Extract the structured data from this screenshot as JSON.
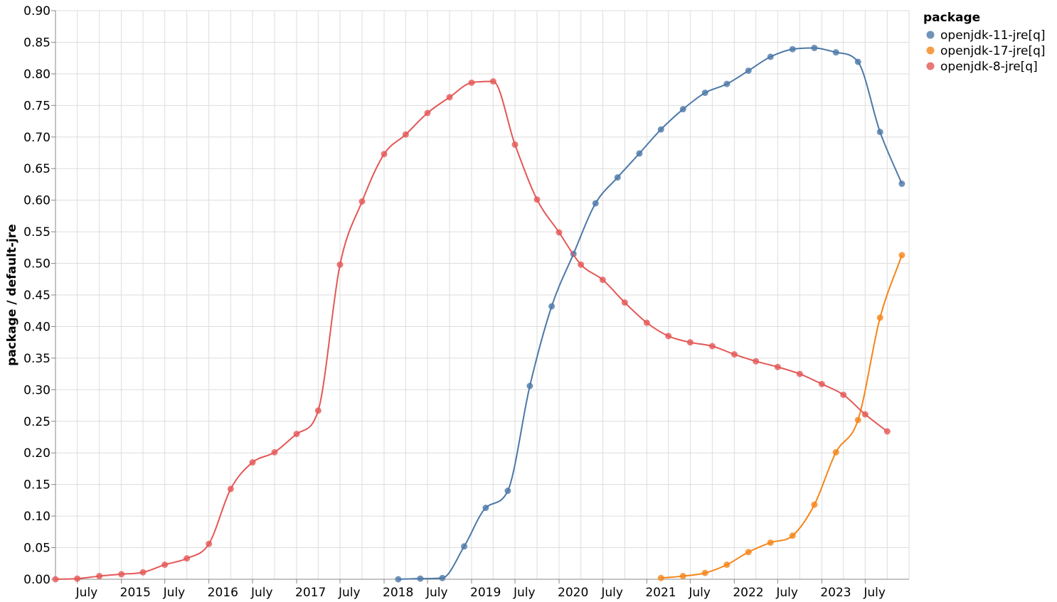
{
  "chart_data": {
    "type": "line",
    "ylabel": "package / default-jre",
    "xlabel": "",
    "ylim": [
      0,
      0.9
    ],
    "yticks": [
      "0.00",
      "0.05",
      "0.10",
      "0.15",
      "0.20",
      "0.25",
      "0.30",
      "0.35",
      "0.40",
      "0.45",
      "0.50",
      "0.55",
      "0.60",
      "0.65",
      "0.70",
      "0.75",
      "0.80",
      "0.85",
      "0.90"
    ],
    "xrange": [
      "2014-04-01",
      "2023-12-31"
    ],
    "xticks": [
      {
        "date": "2014-07-01",
        "label": "July"
      },
      {
        "date": "2015-01-01",
        "label": "2015"
      },
      {
        "date": "2015-07-01",
        "label": "July"
      },
      {
        "date": "2016-01-01",
        "label": "2016"
      },
      {
        "date": "2016-07-01",
        "label": "July"
      },
      {
        "date": "2017-01-01",
        "label": "2017"
      },
      {
        "date": "2017-07-01",
        "label": "July"
      },
      {
        "date": "2018-01-01",
        "label": "2018"
      },
      {
        "date": "2018-07-01",
        "label": "July"
      },
      {
        "date": "2019-01-01",
        "label": "2019"
      },
      {
        "date": "2019-07-01",
        "label": "July"
      },
      {
        "date": "2020-01-01",
        "label": "2020"
      },
      {
        "date": "2020-07-01",
        "label": "July"
      },
      {
        "date": "2021-01-01",
        "label": "2021"
      },
      {
        "date": "2021-07-01",
        "label": "July"
      },
      {
        "date": "2022-01-01",
        "label": "2022"
      },
      {
        "date": "2022-07-01",
        "label": "July"
      },
      {
        "date": "2023-01-01",
        "label": "2023"
      },
      {
        "date": "2023-07-01",
        "label": "July"
      }
    ],
    "grid": true,
    "legend": {
      "title": "package",
      "placement": "top-right"
    },
    "series": [
      {
        "name": "openjdk-11-jre[q]",
        "color": "#4c78a8",
        "points": [
          [
            "2018-03-01",
            0.0
          ],
          [
            "2018-06-01",
            0.001
          ],
          [
            "2018-09-01",
            0.002
          ],
          [
            "2018-12-01",
            0.052
          ],
          [
            "2019-03-01",
            0.113
          ],
          [
            "2019-06-01",
            0.14
          ],
          [
            "2019-09-01",
            0.306
          ],
          [
            "2019-12-01",
            0.432
          ],
          [
            "2020-03-01",
            0.515
          ],
          [
            "2020-06-01",
            0.595
          ],
          [
            "2020-09-01",
            0.636
          ],
          [
            "2020-12-01",
            0.674
          ],
          [
            "2021-03-01",
            0.712
          ],
          [
            "2021-06-01",
            0.744
          ],
          [
            "2021-09-01",
            0.77
          ],
          [
            "2021-12-01",
            0.784
          ],
          [
            "2022-03-01",
            0.805
          ],
          [
            "2022-06-01",
            0.827
          ],
          [
            "2022-09-01",
            0.839
          ],
          [
            "2022-12-01",
            0.841
          ],
          [
            "2023-03-01",
            0.834
          ],
          [
            "2023-06-01",
            0.819
          ],
          [
            "2023-09-01",
            0.708
          ],
          [
            "2023-12-01",
            0.626
          ]
        ]
      },
      {
        "name": "openjdk-17-jre[q]",
        "color": "#f58518",
        "points": [
          [
            "2021-03-01",
            0.002
          ],
          [
            "2021-06-01",
            0.005
          ],
          [
            "2021-09-01",
            0.01
          ],
          [
            "2021-12-01",
            0.023
          ],
          [
            "2022-03-01",
            0.043
          ],
          [
            "2022-06-01",
            0.058
          ],
          [
            "2022-09-01",
            0.069
          ],
          [
            "2022-12-01",
            0.118
          ],
          [
            "2023-03-01",
            0.201
          ],
          [
            "2023-06-01",
            0.252
          ],
          [
            "2023-09-01",
            0.414
          ],
          [
            "2023-12-01",
            0.513
          ]
        ]
      },
      {
        "name": "openjdk-8-jre[q]",
        "color": "#e45756",
        "points": [
          [
            "2014-04-01",
            0.0
          ],
          [
            "2014-07-01",
            0.001
          ],
          [
            "2014-10-01",
            0.005
          ],
          [
            "2015-01-01",
            0.008
          ],
          [
            "2015-04-01",
            0.011
          ],
          [
            "2015-07-01",
            0.023
          ],
          [
            "2015-10-01",
            0.033
          ],
          [
            "2016-01-01",
            0.056
          ],
          [
            "2016-04-01",
            0.143
          ],
          [
            "2016-07-01",
            0.185
          ],
          [
            "2016-10-01",
            0.201
          ],
          [
            "2017-01-01",
            0.23
          ],
          [
            "2017-04-01",
            0.267
          ],
          [
            "2017-07-01",
            0.498
          ],
          [
            "2017-10-01",
            0.598
          ],
          [
            "2018-01-01",
            0.673
          ],
          [
            "2018-04-01",
            0.704
          ],
          [
            "2018-07-01",
            0.738
          ],
          [
            "2018-10-01",
            0.763
          ],
          [
            "2019-01-01",
            0.786
          ],
          [
            "2019-04-01",
            0.788
          ],
          [
            "2019-07-01",
            0.688
          ],
          [
            "2019-10-01",
            0.601
          ],
          [
            "2020-01-01",
            0.549
          ],
          [
            "2020-04-01",
            0.498
          ],
          [
            "2020-07-01",
            0.474
          ],
          [
            "2020-10-01",
            0.438
          ],
          [
            "2021-01-01",
            0.406
          ],
          [
            "2021-04-01",
            0.385
          ],
          [
            "2021-07-01",
            0.375
          ],
          [
            "2021-10-01",
            0.369
          ],
          [
            "2022-01-01",
            0.356
          ],
          [
            "2022-04-01",
            0.345
          ],
          [
            "2022-07-01",
            0.336
          ],
          [
            "2022-10-01",
            0.325
          ],
          [
            "2023-01-01",
            0.309
          ],
          [
            "2023-04-01",
            0.292
          ],
          [
            "2023-07-01",
            0.261
          ],
          [
            "2023-10-01",
            0.234
          ]
        ]
      }
    ]
  }
}
